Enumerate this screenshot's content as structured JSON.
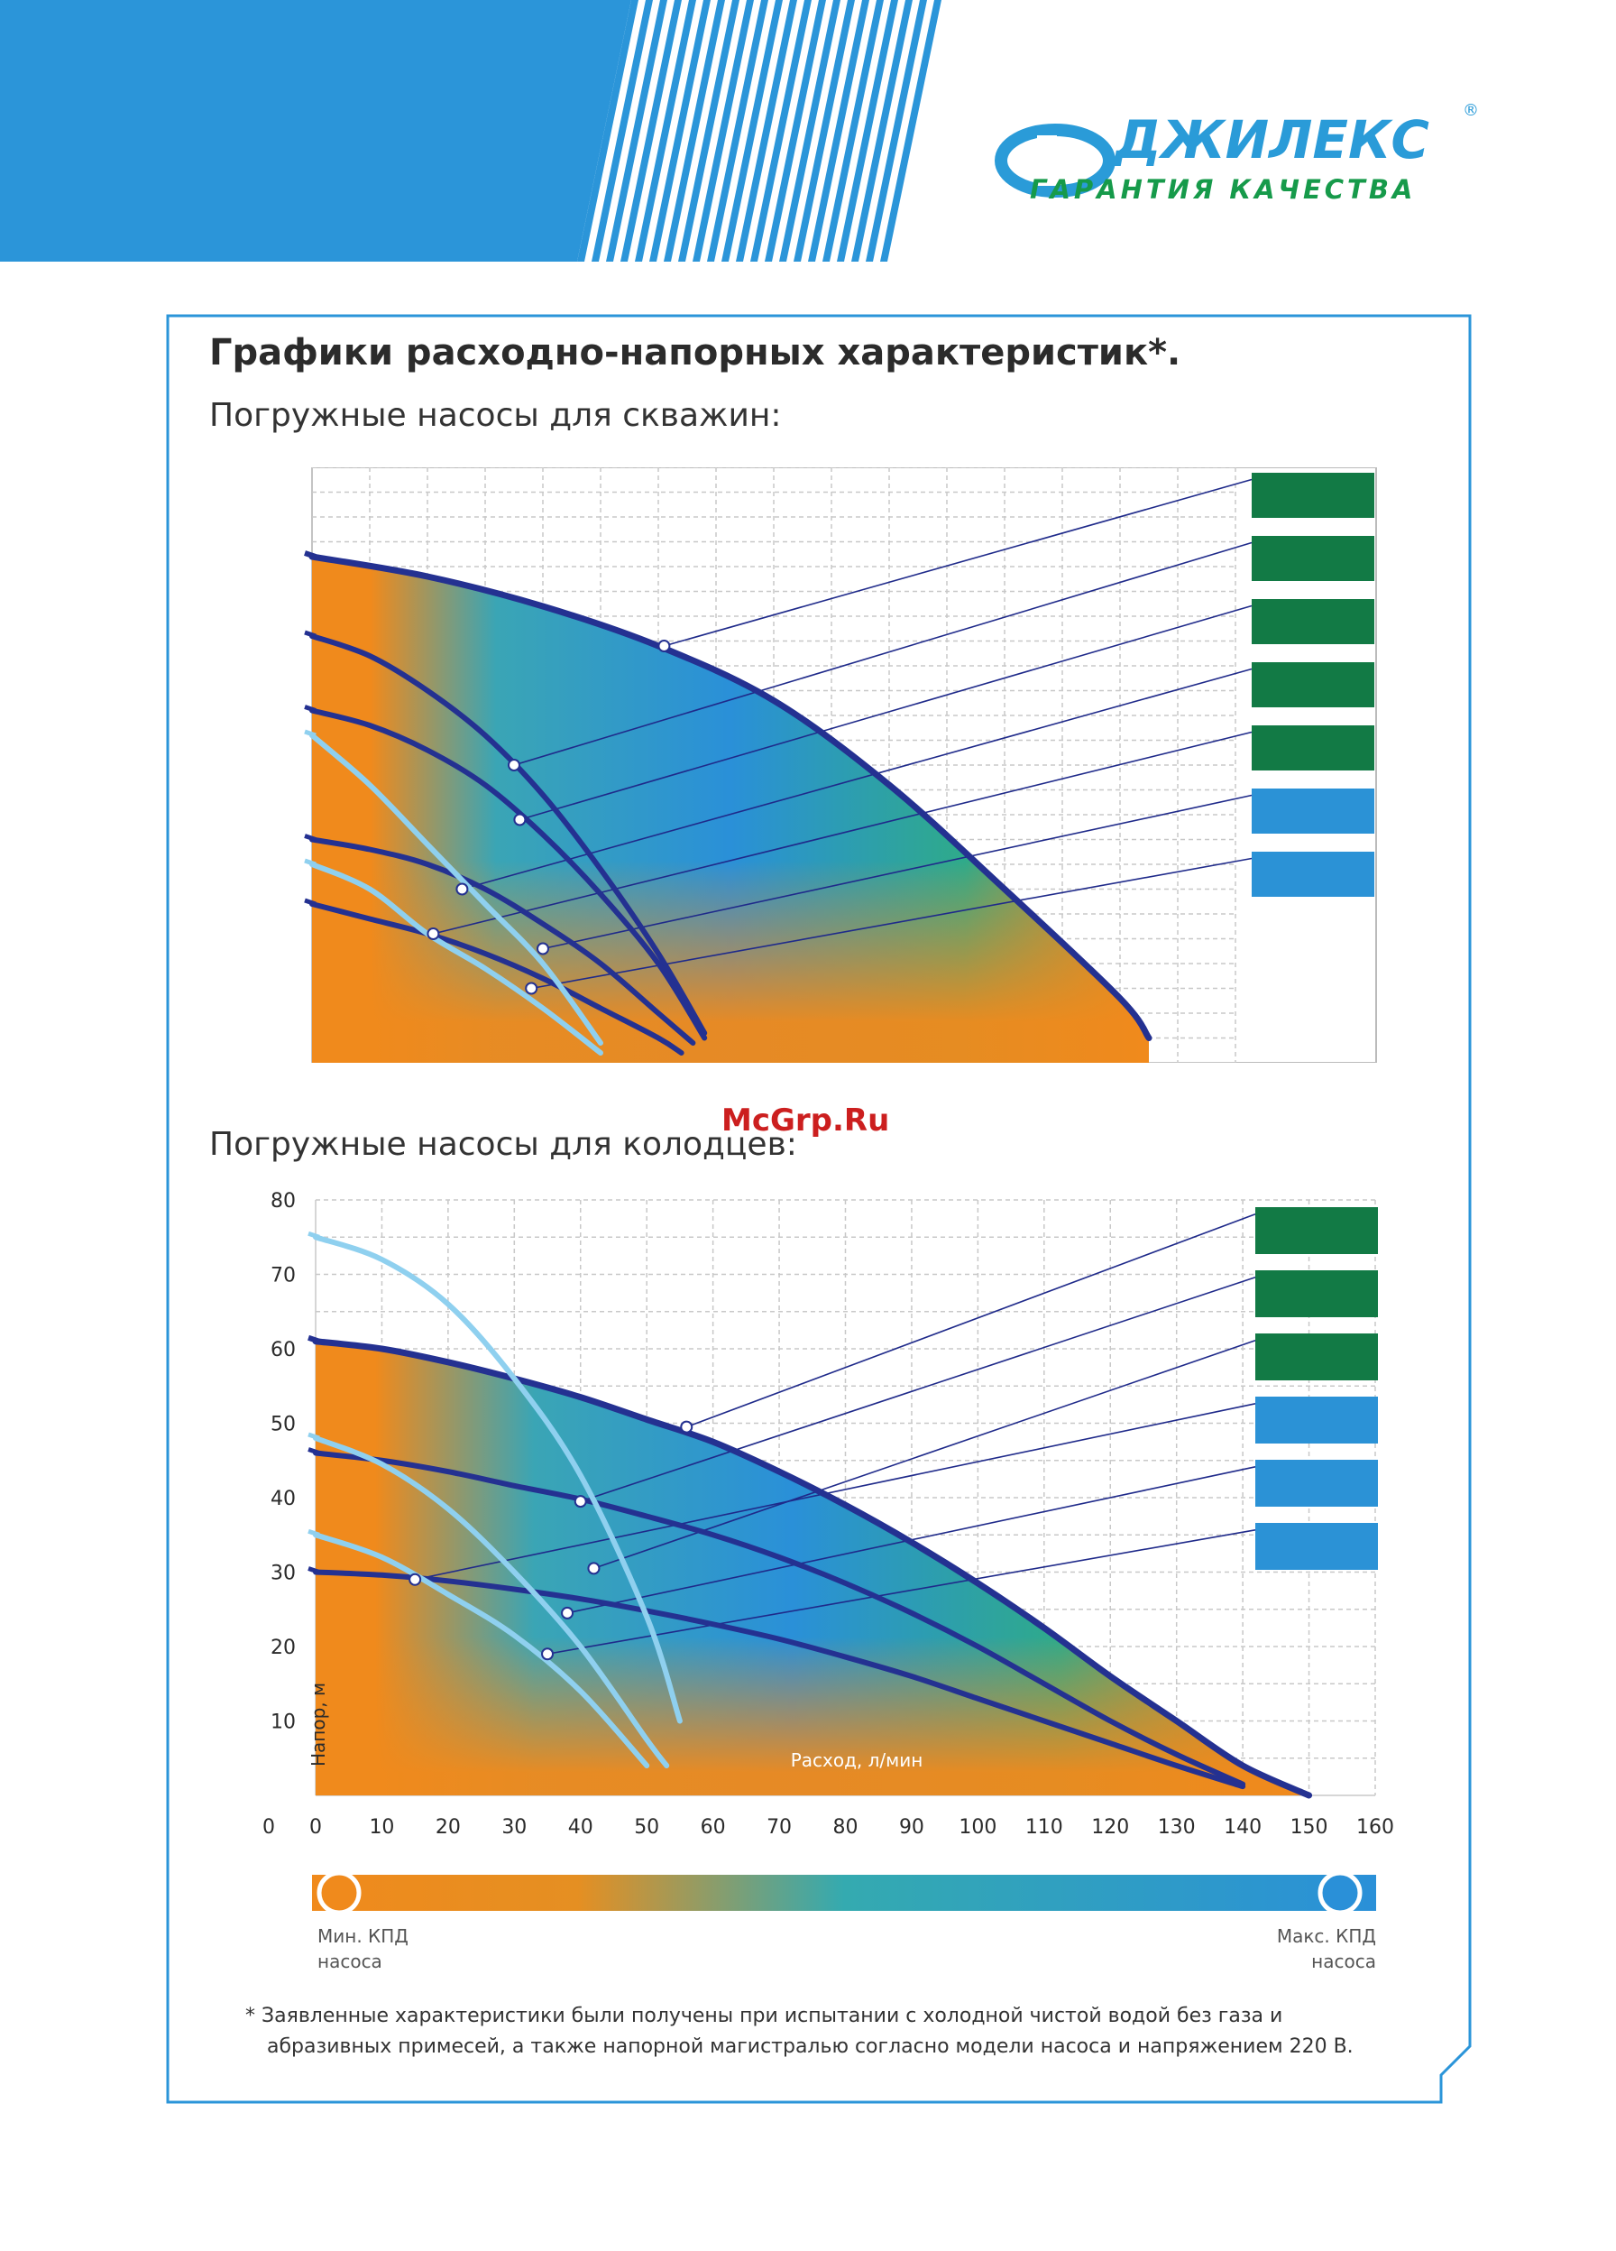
{
  "brand": {
    "name": "ДЖИЛЕКС",
    "registered": "®",
    "tagline": "ГАРАНТИЯ КАЧЕСТВА",
    "color_primary": "#2a9bd8",
    "color_accent": "#169a4a"
  },
  "title": "Графики расходно-напорных характеристик*.",
  "watermark": "McGrp.Ru",
  "chart_data": [
    {
      "type": "line",
      "title": "Погружные насосы для скважин:",
      "xlabel": "",
      "ylabel": "",
      "grid": true,
      "legend": "right",
      "legend_colors": [
        "#127a45",
        "#127a45",
        "#127a45",
        "#127a45",
        "#127a45",
        "#2b92d6",
        "#2b92d6"
      ],
      "series": [
        {
          "values": [
            [
              0,
              10.2
            ],
            [
              20,
              9.8
            ],
            [
              40,
              9.2
            ],
            [
              60,
              8.4
            ],
            [
              80,
              7.3
            ],
            [
              100,
              5.6
            ],
            [
              120,
              3.5
            ],
            [
              140,
              1.3
            ],
            [
              145,
              0.5
            ]
          ]
        },
        {
          "values": [
            [
              0,
              8.6
            ],
            [
              10,
              8.2
            ],
            [
              20,
              7.5
            ],
            [
              30,
              6.6
            ],
            [
              40,
              5.4
            ],
            [
              50,
              3.9
            ],
            [
              60,
              2.2
            ],
            [
              68,
              0.6
            ]
          ]
        },
        {
          "values": [
            [
              0,
              7.1
            ],
            [
              10,
              6.8
            ],
            [
              20,
              6.3
            ],
            [
              30,
              5.6
            ],
            [
              40,
              4.6
            ],
            [
              50,
              3.4
            ],
            [
              60,
              2.0
            ],
            [
              68,
              0.5
            ]
          ]
        },
        {
          "values": [
            [
              0,
              4.5
            ],
            [
              10,
              4.3
            ],
            [
              20,
              4.0
            ],
            [
              30,
              3.5
            ],
            [
              40,
              2.8
            ],
            [
              50,
              2.0
            ],
            [
              60,
              1.0
            ],
            [
              66,
              0.4
            ]
          ]
        },
        {
          "values": [
            [
              0,
              3.2
            ],
            [
              10,
              2.9
            ],
            [
              20,
              2.6
            ],
            [
              30,
              2.2
            ],
            [
              40,
              1.7
            ],
            [
              50,
              1.1
            ],
            [
              60,
              0.5
            ],
            [
              64,
              0.2
            ]
          ]
        },
        {
          "values": [
            [
              0,
              6.6
            ],
            [
              10,
              5.6
            ],
            [
              20,
              4.4
            ],
            [
              30,
              3.2
            ],
            [
              40,
              2.0
            ],
            [
              50,
              0.4
            ]
          ]
        },
        {
          "values": [
            [
              0,
              4.0
            ],
            [
              10,
              3.5
            ],
            [
              20,
              2.6
            ],
            [
              30,
              1.9
            ],
            [
              40,
              1.1
            ],
            [
              50,
              0.2
            ]
          ]
        }
      ],
      "highlight_points": [
        [
          61,
          8.4
        ],
        [
          35,
          6.0
        ],
        [
          36,
          4.9
        ],
        [
          26,
          3.5
        ],
        [
          21,
          2.6
        ],
        [
          40,
          2.3
        ],
        [
          38,
          1.5
        ]
      ]
    },
    {
      "type": "line",
      "title": "Погружные насосы для колодцев:",
      "xlabel": "Расход, л/мин",
      "ylabel": "Напор, м",
      "xlim": [
        0,
        160
      ],
      "ylim": [
        0,
        80
      ],
      "xticks": [
        "0",
        "10",
        "20",
        "30",
        "40",
        "50",
        "60",
        "70",
        "80",
        "90",
        "100",
        "110",
        "120",
        "130",
        "140",
        "150",
        "160"
      ],
      "yticks": [
        "10",
        "20",
        "30",
        "40",
        "50",
        "60",
        "70",
        "80"
      ],
      "grid": true,
      "legend": "right",
      "legend_colors": [
        "#127a45",
        "#127a45",
        "#127a45",
        "#2b92d6",
        "#2b92d6",
        "#2b92d6"
      ],
      "series": [
        {
          "values": [
            [
              0,
              61
            ],
            [
              10,
              60
            ],
            [
              20,
              58.2
            ],
            [
              30,
              56
            ],
            [
              40,
              53.5
            ],
            [
              50,
              50.5
            ],
            [
              60,
              47.5
            ],
            [
              70,
              43.5
            ],
            [
              80,
              39
            ],
            [
              90,
              34
            ],
            [
              100,
              28.5
            ],
            [
              110,
              22.5
            ],
            [
              120,
              16
            ],
            [
              130,
              10
            ],
            [
              140,
              4
            ],
            [
              150,
              0
            ]
          ]
        },
        {
          "values": [
            [
              0,
              46
            ],
            [
              10,
              45
            ],
            [
              20,
              43.5
            ],
            [
              30,
              41.6
            ],
            [
              40,
              39.8
            ],
            [
              50,
              37.5
            ],
            [
              60,
              35
            ],
            [
              70,
              32
            ],
            [
              80,
              28.5
            ],
            [
              90,
              24.5
            ],
            [
              100,
              20
            ],
            [
              110,
              15
            ],
            [
              120,
              10
            ],
            [
              130,
              5.5
            ],
            [
              140,
              1.5
            ]
          ]
        },
        {
          "values": [
            [
              0,
              30
            ],
            [
              10,
              29.6
            ],
            [
              20,
              28.8
            ],
            [
              30,
              27.7
            ],
            [
              40,
              26.4
            ],
            [
              50,
              24.8
            ],
            [
              60,
              23
            ],
            [
              70,
              21
            ],
            [
              80,
              18.6
            ],
            [
              90,
              16
            ],
            [
              100,
              13
            ],
            [
              110,
              10
            ],
            [
              120,
              7
            ],
            [
              130,
              4
            ],
            [
              140,
              1.2
            ]
          ]
        },
        {
          "values": [
            [
              0,
              75
            ],
            [
              10,
              72
            ],
            [
              20,
              66
            ],
            [
              30,
              56
            ],
            [
              40,
              43
            ],
            [
              50,
              24
            ],
            [
              55,
              10
            ]
          ]
        },
        {
          "values": [
            [
              0,
              48
            ],
            [
              10,
              44.5
            ],
            [
              20,
              38.5
            ],
            [
              30,
              30
            ],
            [
              40,
              20
            ],
            [
              50,
              7.5
            ],
            [
              53,
              4
            ]
          ]
        },
        {
          "values": [
            [
              0,
              35
            ],
            [
              10,
              32
            ],
            [
              20,
              27
            ],
            [
              30,
              21.5
            ],
            [
              40,
              14
            ],
            [
              50,
              4
            ]
          ]
        }
      ],
      "highlight_points": [
        [
          56,
          49.5
        ],
        [
          40,
          39.5
        ],
        [
          42,
          30.5
        ],
        [
          15,
          29
        ],
        [
          38,
          24.5
        ],
        [
          35,
          19
        ]
      ]
    }
  ],
  "efficiency_legend": {
    "min_label": "Мин. КПД",
    "min_sub": "насоса",
    "max_label": "Макс. КПД",
    "max_sub": "насоса",
    "color_min": "#f08a1c",
    "color_max": "#2a90d8"
  },
  "footnote": {
    "line1": "* Заявленные характеристики были получены при испытании с холодной чистой водой без газа и",
    "line2": "абразивных примесей, а также напорной магистралью согласно модели насоса и напряжением  220 В."
  }
}
